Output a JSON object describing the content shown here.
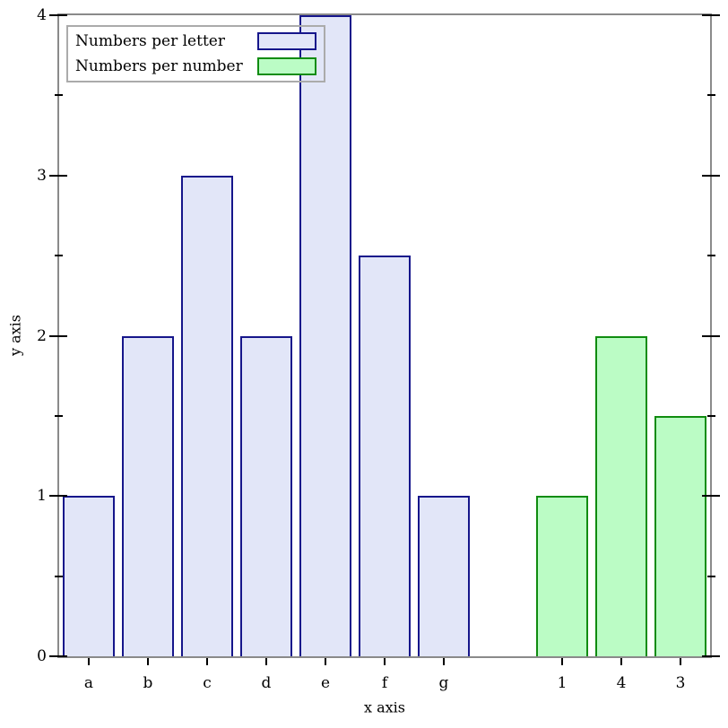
{
  "chart_data": {
    "type": "bar",
    "title": "",
    "xlabel": "x axis",
    "ylabel": "y axis",
    "ylim": [
      0,
      4
    ],
    "y_major_ticks": [
      0,
      1,
      2,
      3,
      4
    ],
    "y_minor_ticks": [
      0.5,
      1.5,
      2.5,
      3.5
    ],
    "slots": 11,
    "categories": [
      "a",
      "b",
      "c",
      "d",
      "e",
      "f",
      "g",
      "1",
      "4",
      "3"
    ],
    "series": [
      {
        "name": "Numbers per letter",
        "fill": "#e2e6f8",
        "line": "#16168b",
        "bars": [
          {
            "slot": 0,
            "label": "a",
            "value": 1
          },
          {
            "slot": 1,
            "label": "b",
            "value": 2
          },
          {
            "slot": 2,
            "label": "c",
            "value": 3
          },
          {
            "slot": 3,
            "label": "d",
            "value": 2
          },
          {
            "slot": 4,
            "label": "e",
            "value": 4
          },
          {
            "slot": 5,
            "label": "f",
            "value": 2.5
          },
          {
            "slot": 6,
            "label": "g",
            "value": 1
          }
        ]
      },
      {
        "name": "Numbers per number",
        "fill": "#bbfcc5",
        "line": "#108c10",
        "bars": [
          {
            "slot": 8,
            "label": "1",
            "value": 1
          },
          {
            "slot": 9,
            "label": "4",
            "value": 2
          },
          {
            "slot": 10,
            "label": "3",
            "value": 1.5
          }
        ]
      }
    ],
    "legend_position": "top-left",
    "grid": false
  },
  "colors": {
    "background": "#ffffff",
    "axis_frame": "#8a8a8a",
    "tick": "#000000",
    "legend_border": "#ababab",
    "text": "#000000"
  }
}
